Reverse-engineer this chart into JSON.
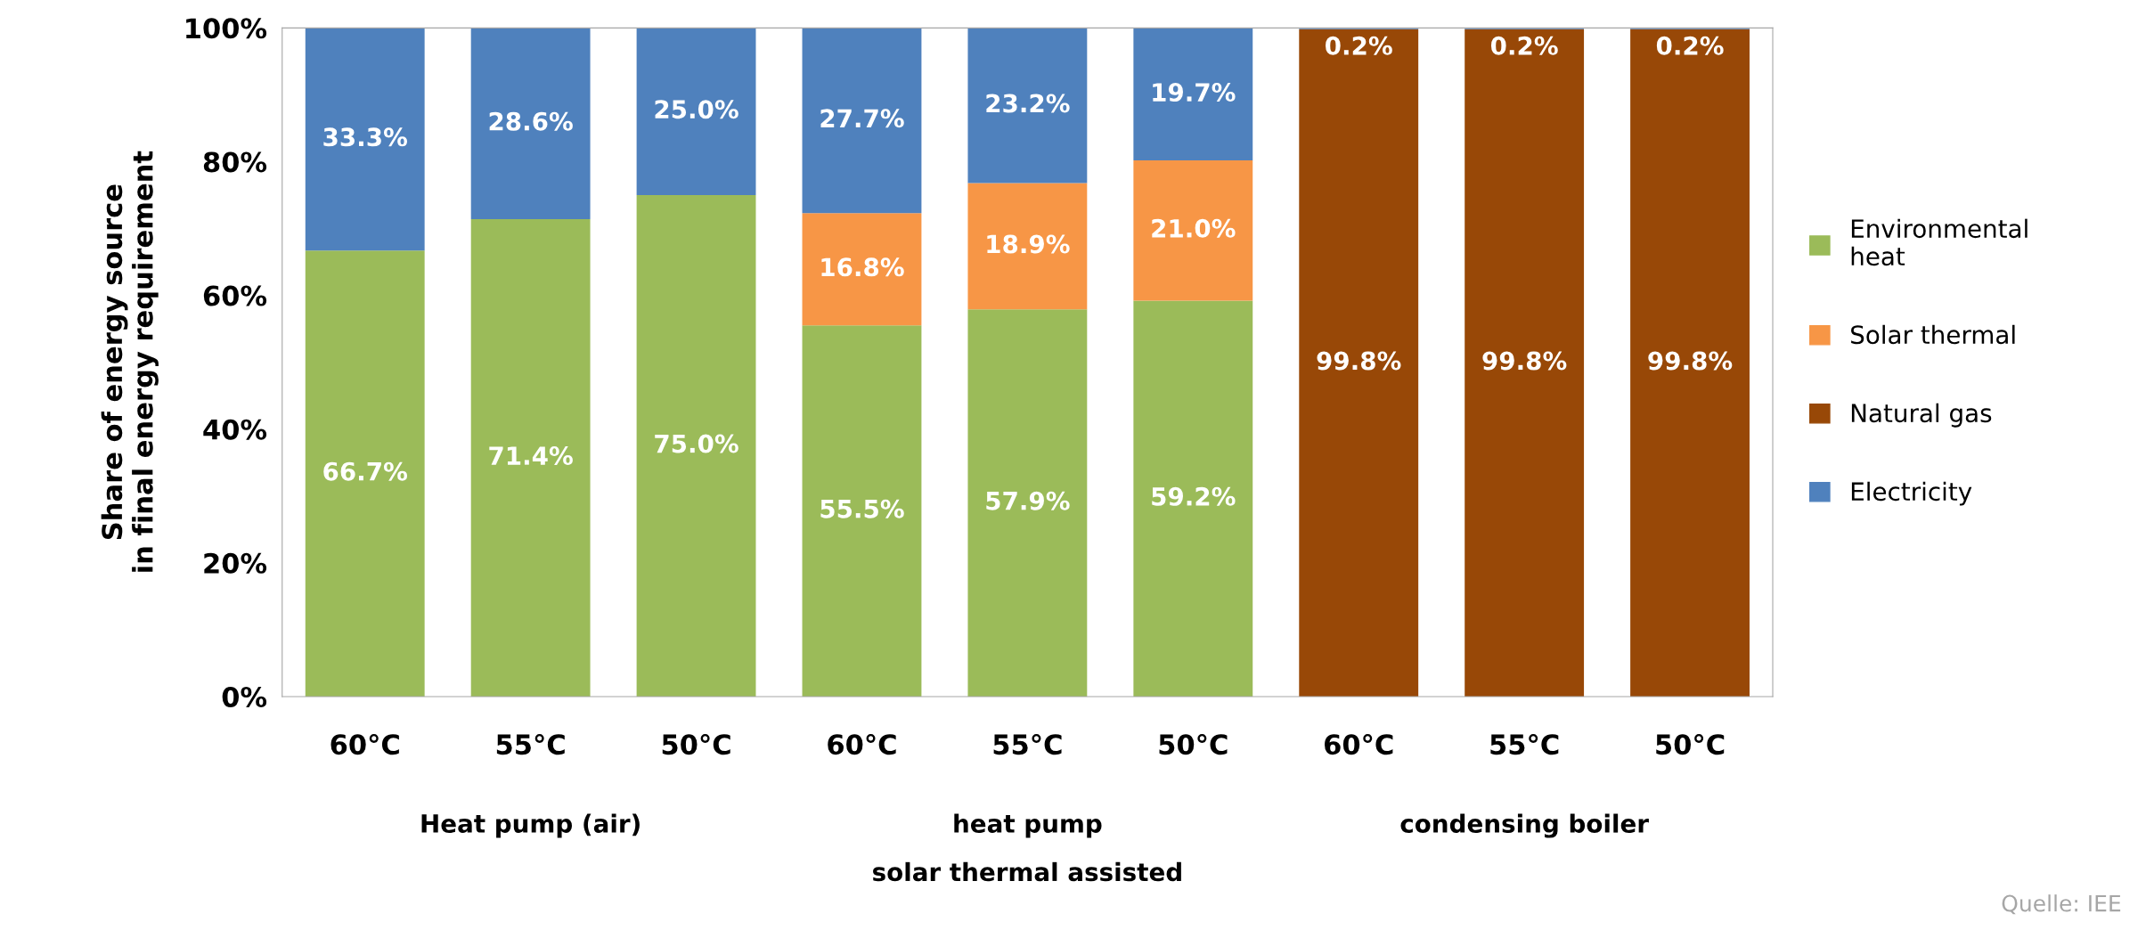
{
  "chart_data": {
    "type": "bar",
    "stacked": true,
    "ylabel": "Share of energy source\nin final energy requirement",
    "categories": [
      "60°C",
      "55°C",
      "50°C",
      "60°C",
      "55°C",
      "50°C",
      "60°C",
      "55°C",
      "50°C"
    ],
    "series": [
      {
        "name": "Environmental\nheat",
        "color": "#9bbb59",
        "values": [
          66.7,
          71.4,
          75.0,
          55.5,
          57.9,
          59.2,
          null,
          null,
          null
        ],
        "value_labels": [
          "66.7%",
          "71.4%",
          "75.0%",
          "55.5%",
          "57.9%",
          "59.2%",
          null,
          null,
          null
        ]
      },
      {
        "name": "Solar thermal",
        "color": "#f79646",
        "values": [
          null,
          null,
          null,
          16.8,
          18.9,
          21.0,
          null,
          null,
          null
        ],
        "value_labels": [
          null,
          null,
          null,
          "16.8%",
          "18.9%",
          "21.0%",
          null,
          null,
          null
        ]
      },
      {
        "name": "Natural gas",
        "color": "#984807",
        "values": [
          null,
          null,
          null,
          null,
          null,
          null,
          99.8,
          99.8,
          99.8
        ],
        "value_labels": [
          null,
          null,
          null,
          null,
          null,
          null,
          "99.8%",
          "99.8%",
          "99.8%"
        ]
      },
      {
        "name": "Electricity",
        "color": "#4f81bd",
        "values": [
          33.3,
          28.6,
          25.0,
          27.7,
          23.2,
          19.7,
          0.2,
          0.2,
          0.2
        ],
        "value_labels": [
          "33.3%",
          "28.6%",
          "25.0%",
          "27.7%",
          "23.2%",
          "19.7%",
          "0.2%",
          "0.2%",
          "0.2%"
        ]
      }
    ],
    "ylim": [
      0,
      100
    ],
    "yticks": [
      {
        "value": 0,
        "label": "0%"
      },
      {
        "value": 20,
        "label": "20%"
      },
      {
        "value": 40,
        "label": "40%"
      },
      {
        "value": 60,
        "label": "60%"
      },
      {
        "value": 80,
        "label": "80%"
      },
      {
        "value": 100,
        "label": "100%"
      }
    ],
    "grid": false,
    "legend": "right",
    "annotations": [
      "Heat pump (air)",
      "heat pump\nsolar thermal assisted",
      "condensing boiler",
      "Quelle: IEE"
    ]
  }
}
